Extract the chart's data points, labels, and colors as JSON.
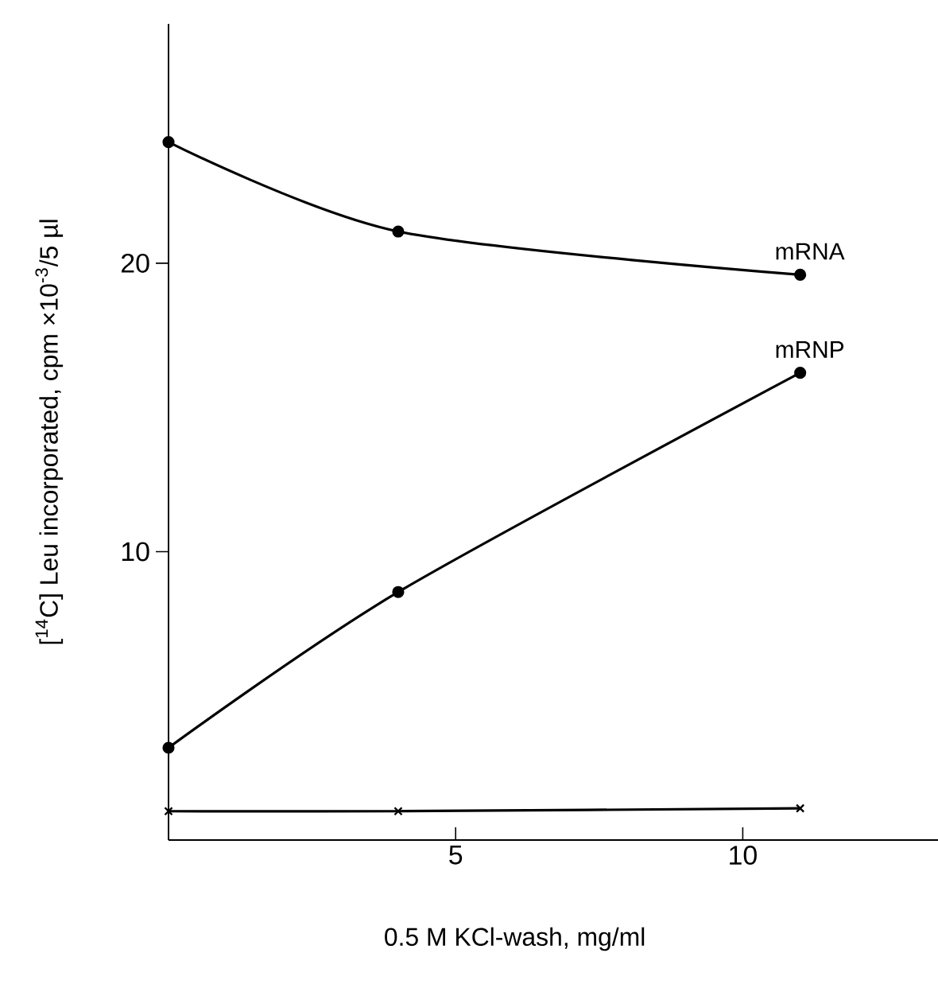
{
  "chart_data": {
    "type": "line",
    "xlabel": "0.5 M KCl-wash, mg/ml",
    "ylabel": "[$^{14}$C] Leu incorporated, cpm ×10$^{-3}$/5 µl",
    "x": [
      0,
      4,
      11
    ],
    "series": [
      {
        "name": "mRNA",
        "color": "#000000",
        "marker": "circle",
        "values": [
          24.2,
          21.1,
          19.6
        ]
      },
      {
        "name": "mRNP",
        "color": "#000000",
        "marker": "circle",
        "values": [
          3.2,
          8.6,
          16.2
        ]
      },
      {
        "color": "#000000",
        "marker": "cross",
        "values": [
          1.0,
          1.0,
          1.1
        ]
      }
    ],
    "xlim": [
      0,
      13.4
    ],
    "ylim": [
      0,
      28.3
    ],
    "xticks": [
      5,
      10
    ],
    "yticks": [
      10,
      20
    ],
    "grid": false,
    "line_style": "solid"
  }
}
